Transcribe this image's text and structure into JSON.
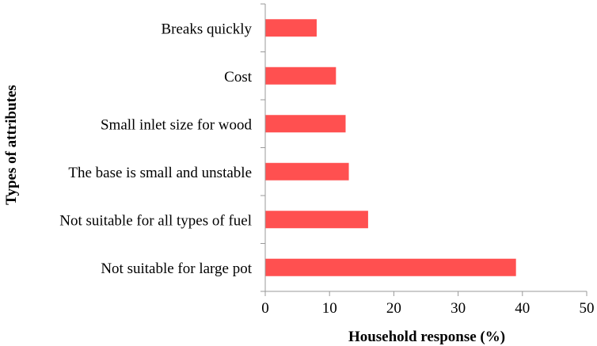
{
  "chart_data": {
    "type": "bar",
    "orientation": "horizontal",
    "title": "",
    "xlabel": "Household response (%)",
    "ylabel": "Types of attributes",
    "categories": [
      "Breaks quickly",
      "Cost",
      "Small inlet size for wood",
      "The base is small and unstable",
      "Not suitable for all types of fuel",
      "Not suitable for large pot"
    ],
    "values": [
      8,
      11,
      12.5,
      13,
      16,
      39
    ],
    "xlim": [
      0,
      50
    ],
    "xticks": [
      0,
      10,
      20,
      30,
      40,
      50
    ],
    "grid": false,
    "legend": "none",
    "bar_color": "#ff5050"
  }
}
